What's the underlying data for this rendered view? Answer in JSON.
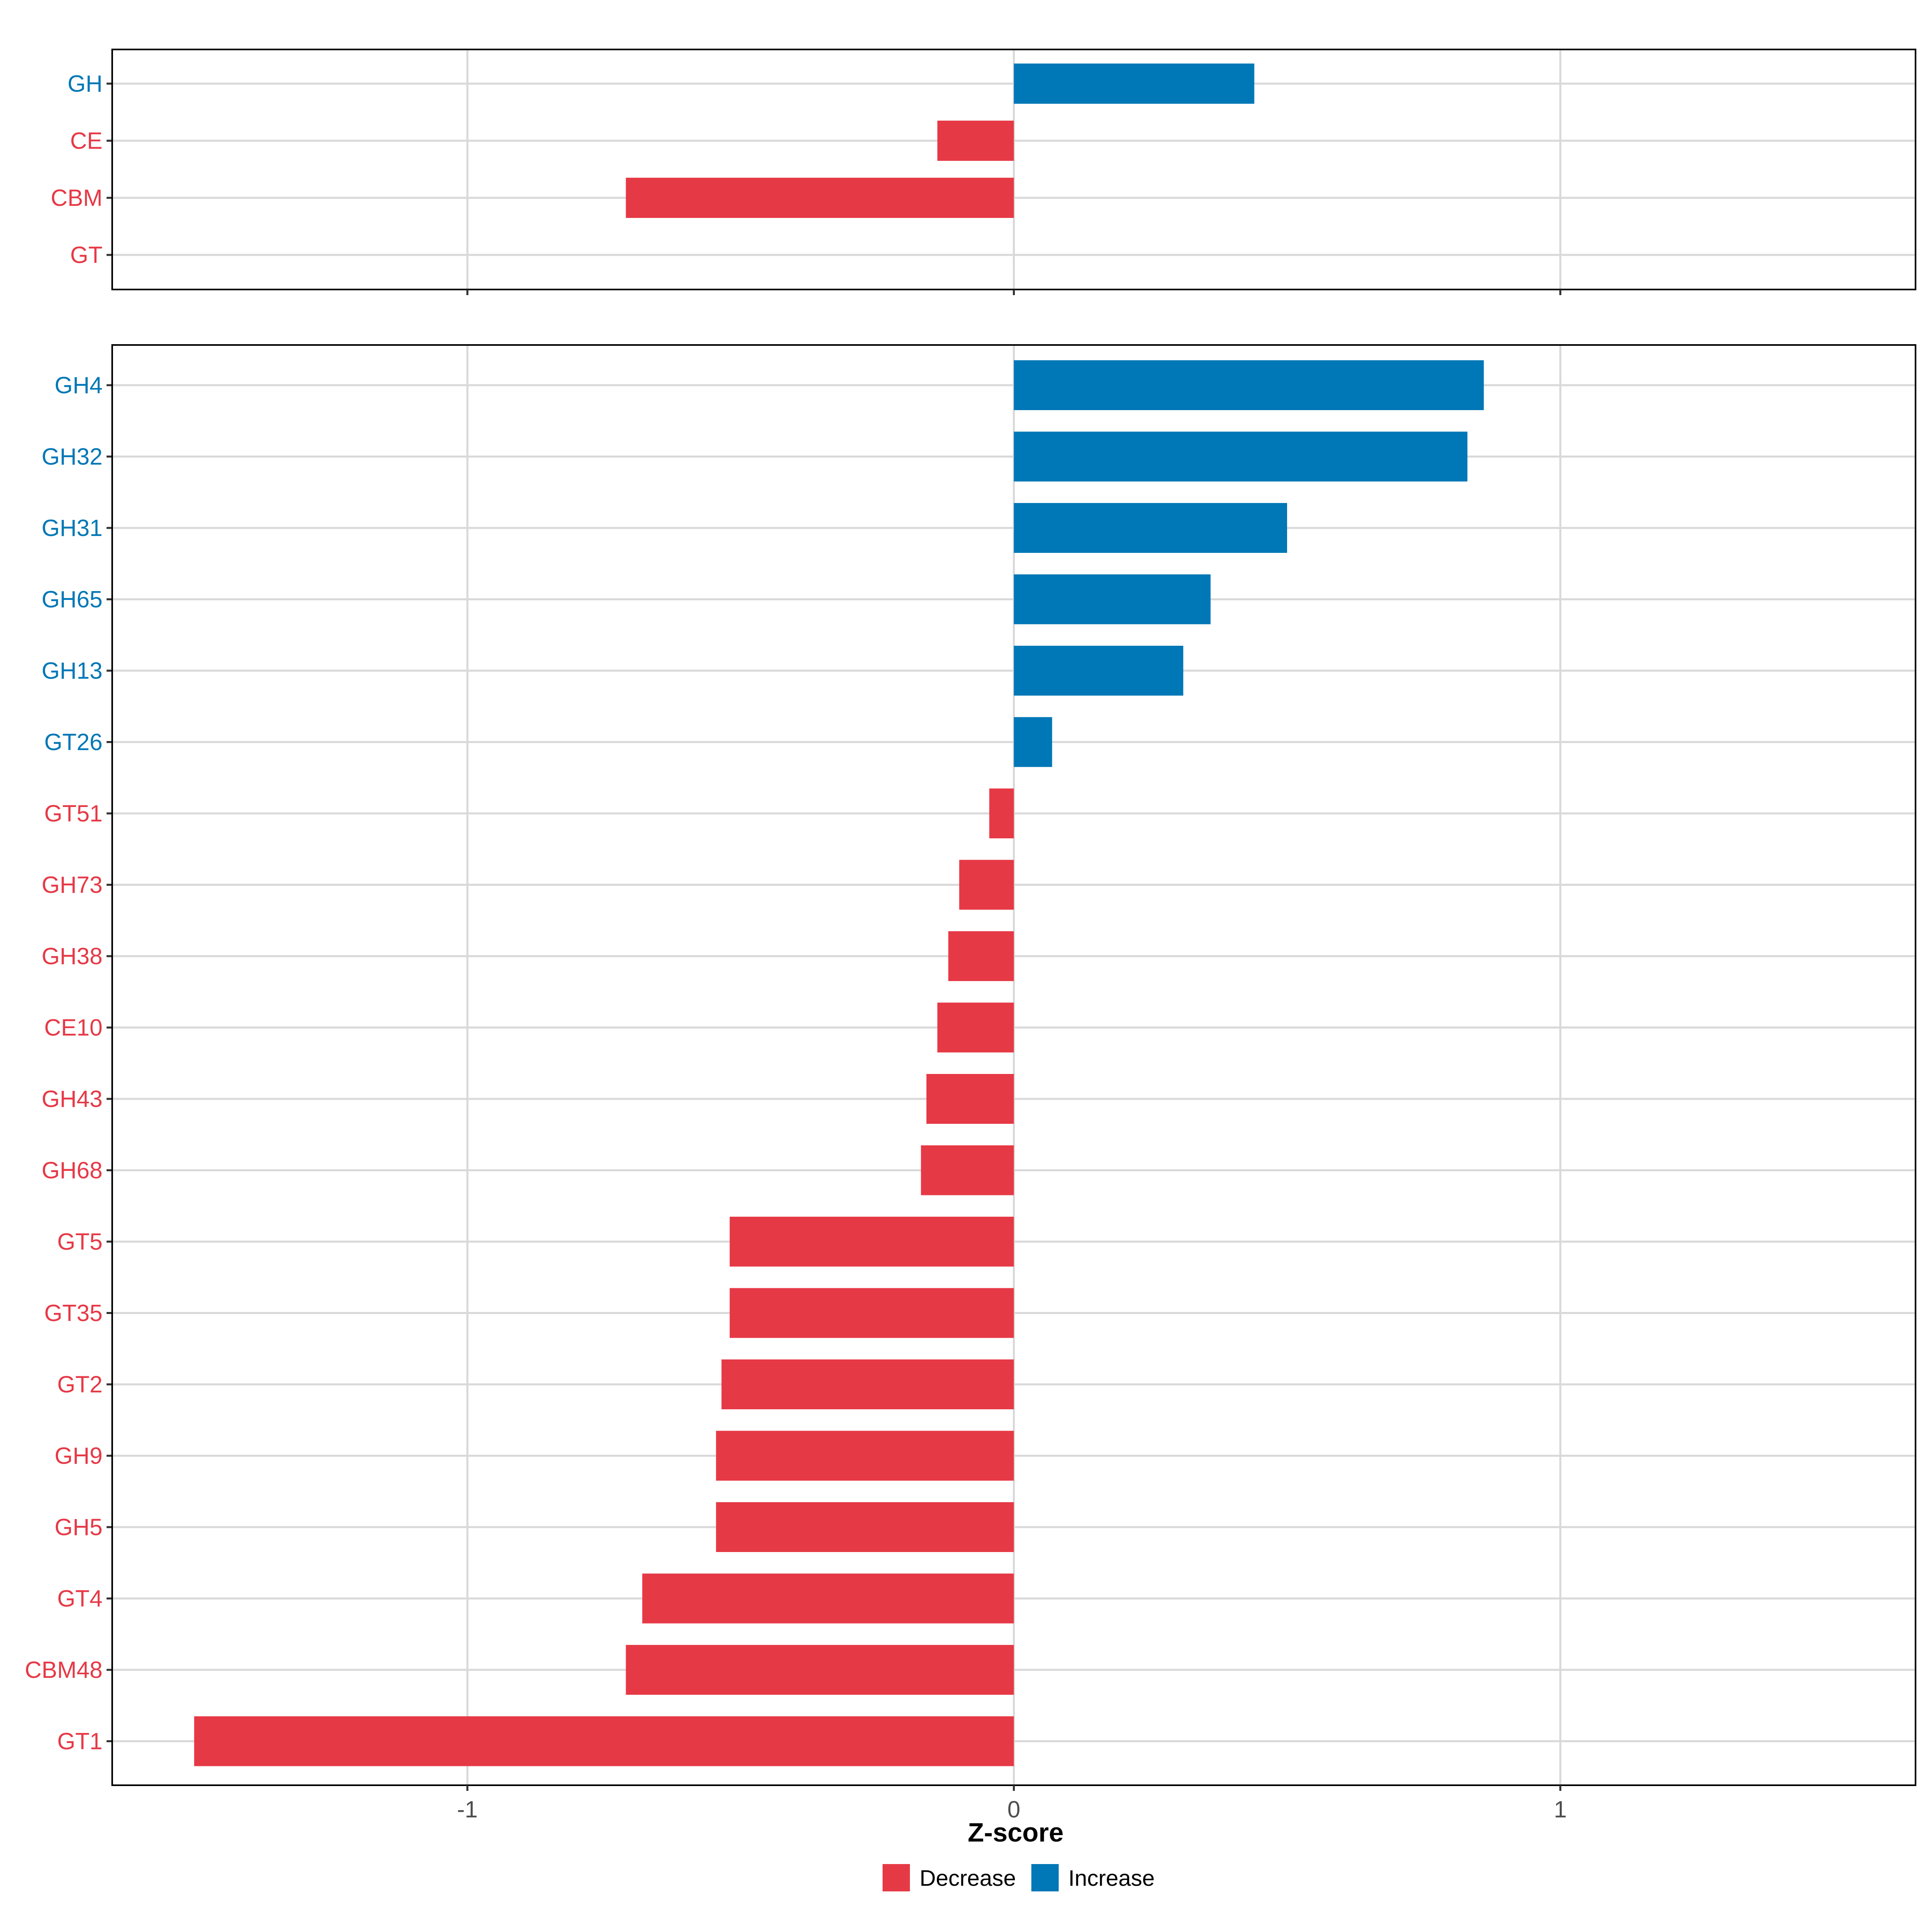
{
  "chart_data": [
    {
      "type": "bar",
      "orientation": "horizontal",
      "panel": "top",
      "categories": [
        "GH",
        "CE",
        "CBM",
        "GT"
      ],
      "values": [
        0.44,
        -0.14,
        -0.71,
        0.0
      ],
      "directions": [
        "Increase",
        "Decrease",
        "Decrease",
        "Decrease"
      ],
      "xlim": [
        -1.65,
        1.65
      ],
      "xticks": [
        -1,
        0,
        1
      ],
      "xtick_labels": [
        "-1",
        "0",
        "1"
      ],
      "xlabel": "",
      "ylabel": ""
    },
    {
      "type": "bar",
      "orientation": "horizontal",
      "panel": "bottom",
      "categories": [
        "GH4",
        "GH32",
        "GH31",
        "GH65",
        "GH13",
        "GT26",
        "GT51",
        "GH73",
        "GH38",
        "CE10",
        "GH43",
        "GH68",
        "GT5",
        "GT35",
        "GT2",
        "GH9",
        "GH5",
        "GT4",
        "CBM48",
        "GT1"
      ],
      "values": [
        0.86,
        0.83,
        0.5,
        0.36,
        0.31,
        0.07,
        -0.045,
        -0.1,
        -0.12,
        -0.14,
        -0.16,
        -0.17,
        -0.52,
        -0.52,
        -0.535,
        -0.545,
        -0.545,
        -0.68,
        -0.71,
        -1.5
      ],
      "directions": [
        "Increase",
        "Increase",
        "Increase",
        "Increase",
        "Increase",
        "Increase",
        "Decrease",
        "Decrease",
        "Decrease",
        "Decrease",
        "Decrease",
        "Decrease",
        "Decrease",
        "Decrease",
        "Decrease",
        "Decrease",
        "Decrease",
        "Decrease",
        "Decrease",
        "Decrease"
      ],
      "xlim": [
        -1.65,
        1.65
      ],
      "xticks": [
        -1,
        0,
        1
      ],
      "xtick_labels": [
        "-1",
        "0",
        "1"
      ],
      "xlabel": "Z-score",
      "ylabel": ""
    }
  ],
  "legend": {
    "position": "bottom",
    "items": [
      {
        "label": "Decrease",
        "color": "#E63946"
      },
      {
        "label": "Increase",
        "color": "#0077B6"
      }
    ]
  },
  "colors": {
    "Decrease": "#E63946",
    "Increase": "#0077B6",
    "grid": "#D9D9D9",
    "frame": "#000000",
    "tick_text": "#4D4D4D"
  }
}
